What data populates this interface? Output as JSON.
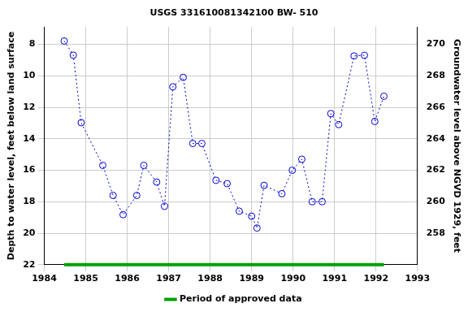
{
  "chart_data": {
    "type": "line",
    "title": "USGS 331610081342100 BW- 510",
    "y_label": "Depth to water level, feet below land surface",
    "y2_label": "Groundwater level above NGVD 1929, feet",
    "xlim": [
      1984,
      1993
    ],
    "xticks": [
      1984,
      1985,
      1986,
      1987,
      1988,
      1989,
      1990,
      1991,
      1992,
      1993
    ],
    "ylim": [
      22,
      6.9
    ],
    "yticks": [
      8,
      10,
      12,
      14,
      16,
      18,
      20,
      22
    ],
    "y2lim": [
      256,
      271.1
    ],
    "y2ticks": [
      258,
      260,
      262,
      264,
      266,
      268,
      270
    ],
    "grid": true,
    "legend": "bottom",
    "series": [
      {
        "color": "#0000cc",
        "marker": "circle",
        "line_style": "dotted",
        "x": [
          1984.48,
          1984.7,
          1984.89,
          1985.41,
          1985.66,
          1985.9,
          1986.23,
          1986.4,
          1986.71,
          1986.9,
          1987.1,
          1987.35,
          1987.58,
          1987.8,
          1988.14,
          1988.41,
          1988.7,
          1989.0,
          1989.13,
          1989.3,
          1989.73,
          1989.98,
          1990.21,
          1990.46,
          1990.7,
          1990.91,
          1991.1,
          1991.47,
          1991.72,
          1991.97,
          1992.19
        ],
        "values": [
          7.79,
          8.69,
          12.98,
          15.69,
          17.6,
          18.82,
          17.6,
          15.69,
          16.75,
          18.29,
          10.7,
          10.1,
          14.3,
          14.3,
          16.64,
          16.85,
          18.6,
          18.92,
          19.67,
          16.96,
          17.49,
          16.0,
          15.3,
          18.0,
          18.0,
          12.4,
          13.1,
          8.74,
          8.7,
          12.9,
          11.3
        ]
      },
      {
        "name": "Period of approved data",
        "color": "#00a000",
        "line_style": "solid",
        "x": [
          1984.48,
          1992.19
        ],
        "values": [
          22,
          22
        ]
      }
    ]
  }
}
